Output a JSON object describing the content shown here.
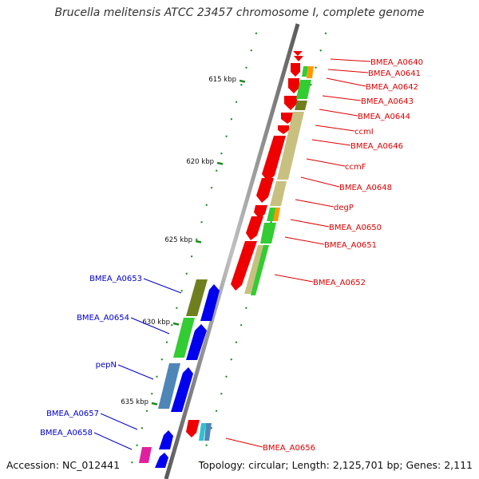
{
  "title": "Brucella melitensis ATCC 23457 chromosome I, complete genome",
  "footer": {
    "accession": "Accession: NC_012441",
    "topology": "Topology: circular; Length: 2,125,701 bp; Genes: 2,111"
  },
  "colors": {
    "backbone": "#8c8c8c",
    "forward_gene": "#0000ee",
    "reverse_gene": "#ee0000",
    "label_forward": "#0000cc",
    "label_reverse": "#dd0000",
    "tick": "#1f8a1f",
    "cog_green": "#33cc33",
    "cog_olive": "#6f7f1f",
    "cog_khaki": "#c8c080",
    "cog_orange": "#ff9900",
    "cog_steelblue": "#4f86b8",
    "cog_magenta": "#e0209f",
    "cog_cyan": "#30c0d0"
  },
  "scale_labels": [
    "615 kbp",
    "620 kbp",
    "625 kbp",
    "630 kbp",
    "635 kbp"
  ],
  "genes_reverse": [
    {
      "label": "BMEA_A0640"
    },
    {
      "label": "BMEA_A0641"
    },
    {
      "label": "BMEA_A0642"
    },
    {
      "label": "BMEA_A0643"
    },
    {
      "label": "BMEA_A0644"
    },
    {
      "label": "ccmI"
    },
    {
      "label": "BMEA_A0646"
    },
    {
      "label": "ccmF"
    },
    {
      "label": "BMEA_A0648"
    },
    {
      "label": "degP"
    },
    {
      "label": "BMEA_A0650"
    },
    {
      "label": "BMEA_A0651"
    },
    {
      "label": "BMEA_A0652"
    },
    {
      "label": "BMEA_A0656"
    }
  ],
  "genes_forward": [
    {
      "label": "BMEA_A0653"
    },
    {
      "label": "BMEA_A0654"
    },
    {
      "label": "pepN"
    },
    {
      "label": "BMEA_A0657"
    },
    {
      "label": "BMEA_A0658"
    }
  ]
}
